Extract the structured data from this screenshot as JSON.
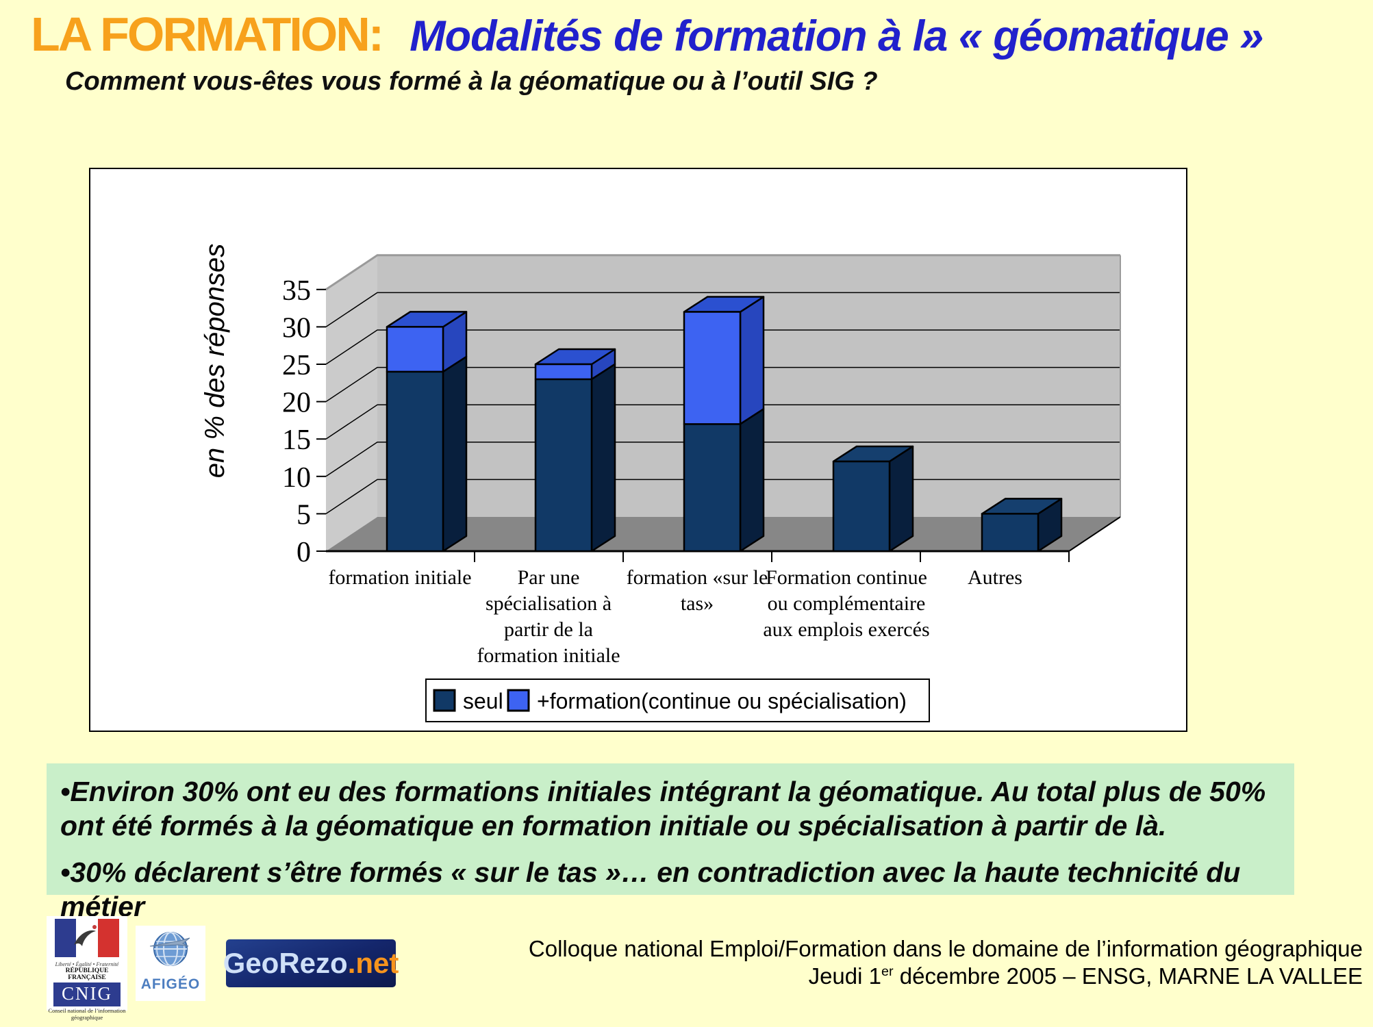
{
  "header": {
    "title_orange": "LA FORMATION:",
    "title_blue": "Modalités de formation à la « géomatique »",
    "question": "Comment vous-êtes vous formé à la géomatique ou à l’outil SIG ?"
  },
  "chart_data": {
    "type": "bar",
    "variant": "3d-stacked-column",
    "title": "",
    "xlabel": "",
    "ylabel": "en % des réponses",
    "ylim": [
      0,
      35
    ],
    "ytick_step": 5,
    "grid": true,
    "legend_position": "bottom",
    "categories": [
      "formation initiale",
      "Par une spécialisation à partir de la formation initiale",
      "formation «sur le tas»",
      "Formation continue ou complémentaire aux emplois exercés",
      "Autres"
    ],
    "category_label_lines": [
      [
        "formation initiale"
      ],
      [
        "Par une",
        "spécialisation à",
        "partir de la",
        "formation initiale"
      ],
      [
        "formation «sur le",
        "tas»"
      ],
      [
        "Formation continue",
        "ou complémentaire",
        "aux emplois exercés"
      ],
      [
        "Autres"
      ]
    ],
    "series": [
      {
        "name": "seul",
        "values": [
          24,
          23,
          17,
          12,
          5
        ],
        "color_front": "#113966",
        "color_side": "#081F3D",
        "color_top": "#153F6E"
      },
      {
        "name": "+formation(continue ou spécialisation)",
        "values": [
          6,
          2,
          15,
          0,
          0
        ],
        "color_front": "#3D63F2",
        "color_side": "#2746BE",
        "color_top": "#2B50D0"
      }
    ],
    "walls": {
      "back": "#C2C2C2",
      "side": "#CBCBCB",
      "floor": "#878787"
    }
  },
  "notes": {
    "bullet1": "•Environ 30% ont eu des formations initiales intégrant la géomatique. Au total plus de 50% ont été formés à la géomatique en formation initiale ou spécialisation à partir de là.",
    "bullet2": "•30% déclarent s’être formés « sur le tas »… en contradiction avec la haute technicité du métier"
  },
  "footer": {
    "line1": "Colloque national Emploi/Formation dans le domaine de l’information géographique",
    "line2_prefix": "Jeudi 1",
    "line2_sup": "er",
    "line2_suffix": " décembre 2005 – ENSG, MARNE LA VALLEE"
  },
  "logos": {
    "cnig": {
      "motto": "Liberté • Égalité • Fraternité",
      "republic": "RÉPUBLIQUE FRANÇAISE",
      "acronym": "CNIG",
      "caption": "Conseil national de l’information géographique"
    },
    "afigeo": {
      "name": "AFIGÉO"
    },
    "georezo": {
      "name": "GeoRezo",
      "tld": ".net"
    }
  },
  "theme": {
    "background": "#FFFFCC",
    "title_orange": "#F7A11C",
    "title_blue": "#2121CC",
    "note_background": "#C9EFC9"
  }
}
